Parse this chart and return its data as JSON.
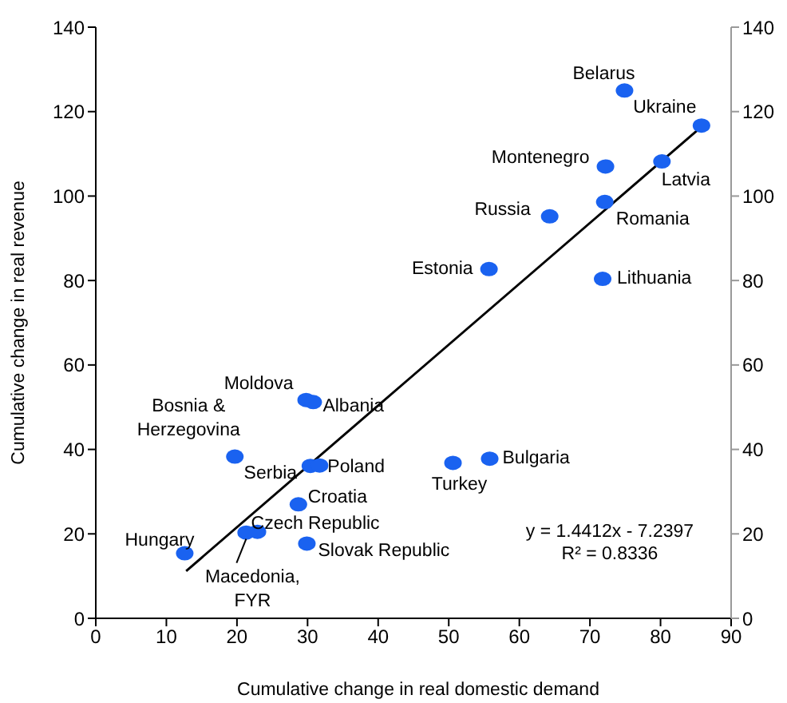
{
  "chart_data": {
    "type": "scatter",
    "xlabel": "Cumulative change in real domestic demand",
    "ylabel": "Cumulative change in real revenue",
    "xlim": [
      0,
      90
    ],
    "xticks": [
      0,
      10,
      20,
      30,
      40,
      50,
      60,
      70,
      80,
      90
    ],
    "ylim": [
      0,
      140
    ],
    "yticks": [
      0,
      20,
      40,
      60,
      80,
      100,
      120,
      140
    ],
    "y2lim": [
      0,
      140
    ],
    "y2ticks": [
      0,
      20,
      40,
      60,
      80,
      100,
      120,
      140
    ],
    "legend": false,
    "series": [
      {
        "marker": "circle",
        "color": "#1a62f0",
        "x": [
          74.9,
          85.8,
          80.2,
          72.2,
          72.1,
          64.3,
          55.7,
          71.8,
          29.8,
          30.8,
          19.7,
          30.4,
          31.7,
          50.6,
          55.8,
          28.7,
          22.9,
          21.3,
          29.9,
          12.6
        ],
        "values": [
          125.0,
          116.7,
          108.2,
          107.0,
          98.6,
          95.2,
          82.7,
          80.4,
          51.7,
          51.2,
          38.3,
          36.1,
          36.2,
          36.8,
          37.8,
          27.0,
          20.5,
          20.3,
          17.7,
          15.4
        ]
      },
      {
        "type": "line",
        "color": "#000000",
        "x": [
          12.8,
          86
        ],
        "values": [
          11.2,
          116.7
        ]
      }
    ],
    "annotations": [
      {
        "text": "Belarus",
        "x": 74.9,
        "y": 125.0
      },
      {
        "text": "Ukraine",
        "x": 85.8,
        "y": 116.7
      },
      {
        "text": "Latvia",
        "x": 80.2,
        "y": 108.2
      },
      {
        "text": "Montenegro",
        "x": 72.2,
        "y": 107.0
      },
      {
        "text": "Romania",
        "x": 72.1,
        "y": 98.6
      },
      {
        "text": "Russia",
        "x": 64.3,
        "y": 95.2
      },
      {
        "text": "Estonia",
        "x": 55.7,
        "y": 82.7
      },
      {
        "text": "Lithuania",
        "x": 71.8,
        "y": 80.4
      },
      {
        "text": "Moldova",
        "x": 29.8,
        "y": 51.7
      },
      {
        "text": "Albania",
        "x": 30.8,
        "y": 51.2
      },
      {
        "text": "Bosnia &\nHerzegovina",
        "x": 19.7,
        "y": 38.3
      },
      {
        "text": "Serbia",
        "x": 30.4,
        "y": 36.1
      },
      {
        "text": "Poland",
        "x": 31.7,
        "y": 36.2
      },
      {
        "text": "Turkey",
        "x": 50.6,
        "y": 36.8
      },
      {
        "text": "Bulgaria",
        "x": 55.8,
        "y": 37.8
      },
      {
        "text": "Croatia",
        "x": 28.7,
        "y": 27.0
      },
      {
        "text": "Czech Republic",
        "x": 22.9,
        "y": 20.5
      },
      {
        "text": "Macedonia,\nFYR",
        "x": 21.3,
        "y": 20.3
      },
      {
        "text": "Slovak Republic",
        "x": 29.9,
        "y": 17.7
      },
      {
        "text": "Hungary",
        "x": 12.6,
        "y": 15.4
      },
      "y = 1.4412x - 7.2397",
      "R² = 0.8336"
    ]
  }
}
